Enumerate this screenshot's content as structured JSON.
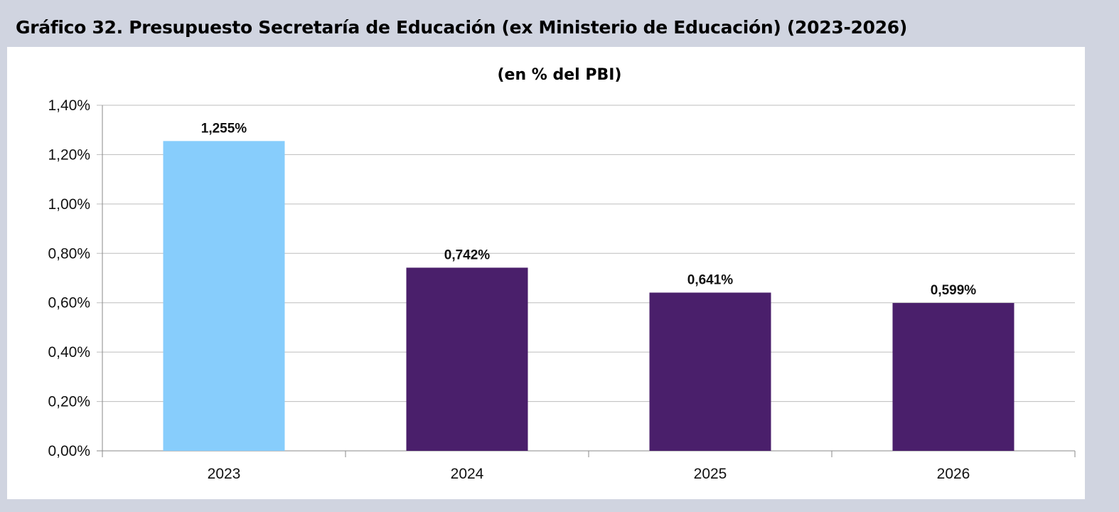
{
  "title": "Gráfico 32. Presupuesto Secretaría de Educación (ex Ministerio de Educación) (2023-2026)",
  "chart_data": {
    "type": "bar",
    "title": "(en % del PBI)",
    "categories": [
      "2023",
      "2024",
      "2025",
      "2026"
    ],
    "values": [
      1.255,
      0.742,
      0.641,
      0.599
    ],
    "data_labels": [
      "1,255%",
      "0,742%",
      "0,641%",
      "0,599%"
    ],
    "bar_colors": [
      "#87cdfc",
      "#4a1f6b",
      "#4a1f6b",
      "#4a1f6b"
    ],
    "ylim": [
      0,
      1.4
    ],
    "yticks": [
      0,
      0.2,
      0.4,
      0.6,
      0.8,
      1.0,
      1.2,
      1.4
    ],
    "ytick_labels": [
      "0,00%",
      "0,20%",
      "0,40%",
      "0,60%",
      "0,80%",
      "1,00%",
      "1,20%",
      "1,40%"
    ],
    "grid": true,
    "legend": "none"
  }
}
